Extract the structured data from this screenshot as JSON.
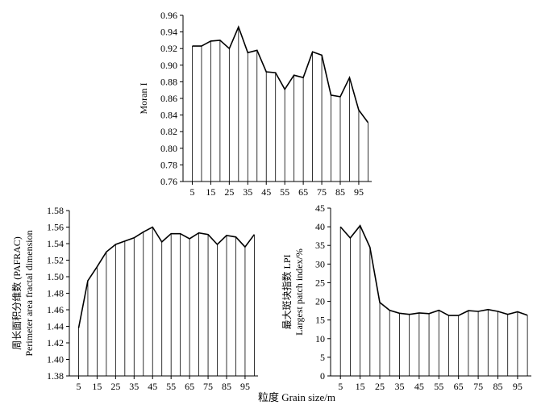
{
  "xlabel": "粒度 Grain size/m",
  "chart_data": [
    {
      "type": "area",
      "ylabel_lines": [
        "Moran I"
      ],
      "xlim": [
        0,
        102
      ],
      "ylim": [
        0.76,
        0.96
      ],
      "yticks": [
        "0.96",
        "0.94",
        "0.92",
        "0.90",
        "0.88",
        "0.86",
        "0.84",
        "0.82",
        "0.80",
        "0.78",
        "0.76"
      ],
      "xticks": [
        5,
        15,
        25,
        35,
        45,
        55,
        65,
        75,
        85,
        95
      ],
      "x": [
        5,
        10,
        15,
        20,
        25,
        30,
        35,
        40,
        45,
        50,
        55,
        60,
        65,
        70,
        75,
        80,
        85,
        90,
        95,
        100
      ],
      "values": [
        0.923,
        0.923,
        0.929,
        0.93,
        0.92,
        0.946,
        0.915,
        0.918,
        0.892,
        0.891,
        0.871,
        0.888,
        0.885,
        0.916,
        0.912,
        0.864,
        0.862,
        0.885,
        0.846,
        0.831
      ]
    },
    {
      "type": "area",
      "ylabel_lines": [
        "周长面积分维数 (PAFRAC)",
        "Perimeter area fractal dimension"
      ],
      "xlim": [
        0,
        102
      ],
      "ylim": [
        1.38,
        1.58
      ],
      "yticks": [
        "1.58",
        "1.56",
        "1.54",
        "1.52",
        "1.50",
        "1.48",
        "1.46",
        "1.44",
        "1.42",
        "1.40",
        "1.38"
      ],
      "xticks": [
        5,
        15,
        25,
        35,
        45,
        55,
        65,
        75,
        85,
        95
      ],
      "x": [
        5,
        10,
        15,
        20,
        25,
        30,
        35,
        40,
        45,
        50,
        55,
        60,
        65,
        70,
        75,
        80,
        85,
        90,
        95,
        100
      ],
      "values": [
        1.438,
        1.495,
        1.512,
        1.53,
        1.539,
        1.543,
        1.547,
        1.554,
        1.56,
        1.542,
        1.552,
        1.552,
        1.546,
        1.553,
        1.551,
        1.539,
        1.55,
        1.548,
        1.536,
        1.551
      ]
    },
    {
      "type": "area",
      "ylabel_lines": [
        "最大斑块指数 LPI",
        "Largest patch index/%"
      ],
      "xlim": [
        0,
        102
      ],
      "ylim": [
        0,
        45
      ],
      "yticks": [
        "45",
        "40",
        "35",
        "30",
        "25",
        "20",
        "15",
        "10",
        "5",
        "0"
      ],
      "xticks": [
        5,
        15,
        25,
        35,
        45,
        55,
        65,
        75,
        85,
        95
      ],
      "x": [
        5,
        10,
        15,
        20,
        25,
        30,
        35,
        40,
        45,
        50,
        55,
        60,
        65,
        70,
        75,
        80,
        85,
        90,
        95,
        100
      ],
      "values": [
        40.0,
        37.0,
        40.3,
        34.5,
        19.7,
        17.6,
        16.8,
        16.5,
        16.9,
        16.7,
        17.6,
        16.2,
        16.2,
        17.5,
        17.3,
        17.8,
        17.3,
        16.5,
        17.2,
        16.3
      ]
    }
  ]
}
